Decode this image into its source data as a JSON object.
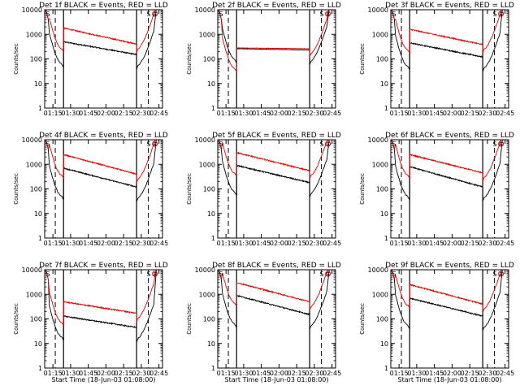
{
  "figure": {
    "ylabel": "Counts/sec",
    "xlabel": "Start Time (18-Jun-03 01:08:00)",
    "flag_s": "S",
    "flag_e": "E"
  },
  "chart_data": [
    {
      "type": "line",
      "title": "Det 1f BLACK = Events, RED = LLD",
      "xlabel": "Start Time (18-Jun-03 01:08:00)",
      "ylabel": "Counts/sec",
      "yscale": "log",
      "ylim": [
        1,
        10000
      ],
      "xlim": [
        0,
        100
      ],
      "x_ticks": [
        7,
        22,
        37,
        52,
        67,
        82,
        97
      ],
      "x_tick_labels": [
        "01:15",
        "01:30",
        "01:45",
        "02:00",
        "02:15",
        "02:30",
        "02:45"
      ],
      "y_ticks": [
        1,
        10,
        100,
        1000,
        10000
      ],
      "y_tick_labels": [
        "1",
        "10",
        "100",
        "1000",
        "10000"
      ],
      "show_xlabel": false,
      "saa_start": 16,
      "saa_end": 78,
      "dashed_lines": [
        9,
        88
      ],
      "series": [
        {
          "name": "Events",
          "color": "#000000",
          "start": 500,
          "end": 150
        },
        {
          "name": "LLD",
          "color": "#e00000",
          "start": 1800,
          "end": 400
        }
      ]
    },
    {
      "type": "line",
      "title": "Det 2f BLACK = Events, RED = LLD",
      "xlabel": "Start Time (18-Jun-03 01:08:00)",
      "ylabel": "Counts/sec",
      "yscale": "log",
      "ylim": [
        1,
        10000
      ],
      "xlim": [
        0,
        100
      ],
      "x_ticks": [
        7,
        22,
        37,
        52,
        67,
        82,
        97
      ],
      "x_tick_labels": [
        "01:15",
        "01:30",
        "01:45",
        "02:00",
        "02:15",
        "02:30",
        "02:45"
      ],
      "y_ticks": [
        1,
        10,
        100,
        1000,
        10000
      ],
      "y_tick_labels": [
        "1",
        "10",
        "100",
        "1000",
        "10000"
      ],
      "show_xlabel": false,
      "saa_start": 16,
      "saa_end": 78,
      "dashed_lines": [
        9,
        88
      ],
      "series": [
        {
          "name": "Events",
          "color": "#000000",
          "start": 260,
          "end": 230
        },
        {
          "name": "LLD",
          "color": "#e00000",
          "start": 280,
          "end": 260
        }
      ]
    },
    {
      "type": "line",
      "title": "Det 3f BLACK = Events, RED = LLD",
      "xlabel": "Start Time (18-Jun-03 01:08:00)",
      "ylabel": "Counts/sec",
      "yscale": "log",
      "ylim": [
        1,
        10000
      ],
      "xlim": [
        0,
        100
      ],
      "x_ticks": [
        7,
        22,
        37,
        52,
        67,
        82,
        97
      ],
      "x_tick_labels": [
        "01:15",
        "01:30",
        "01:45",
        "02:00",
        "02:15",
        "02:30",
        "02:45"
      ],
      "y_ticks": [
        1,
        10,
        100,
        1000,
        10000
      ],
      "y_tick_labels": [
        "1",
        "10",
        "100",
        "1000",
        "10000"
      ],
      "show_xlabel": false,
      "saa_start": 16,
      "saa_end": 78,
      "dashed_lines": [
        9,
        88
      ],
      "series": [
        {
          "name": "Events",
          "color": "#000000",
          "start": 450,
          "end": 120
        },
        {
          "name": "LLD",
          "color": "#e00000",
          "start": 1600,
          "end": 380
        }
      ]
    },
    {
      "type": "line",
      "title": "Det 4f BLACK = Events, RED = LLD",
      "xlabel": "Start Time (18-Jun-03 01:08:00)",
      "ylabel": "Counts/sec",
      "yscale": "log",
      "ylim": [
        1,
        10000
      ],
      "xlim": [
        0,
        100
      ],
      "x_ticks": [
        7,
        22,
        37,
        52,
        67,
        82,
        97
      ],
      "x_tick_labels": [
        "01:15",
        "01:30",
        "01:45",
        "02:00",
        "02:15",
        "02:30",
        "02:45"
      ],
      "y_ticks": [
        1,
        10,
        100,
        1000,
        10000
      ],
      "y_tick_labels": [
        "1",
        "10",
        "100",
        "1000",
        "10000"
      ],
      "show_xlabel": false,
      "saa_start": 16,
      "saa_end": 78,
      "dashed_lines": [
        9,
        88
      ],
      "series": [
        {
          "name": "Events",
          "color": "#000000",
          "start": 700,
          "end": 120
        },
        {
          "name": "LLD",
          "color": "#e00000",
          "start": 2500,
          "end": 400
        }
      ]
    },
    {
      "type": "line",
      "title": "Det 5f BLACK = Events, RED = LLD",
      "xlabel": "Start Time (18-Jun-03 01:08:00)",
      "ylabel": "Counts/sec",
      "yscale": "log",
      "ylim": [
        1,
        10000
      ],
      "xlim": [
        0,
        100
      ],
      "x_ticks": [
        7,
        22,
        37,
        52,
        67,
        82,
        97
      ],
      "x_tick_labels": [
        "01:15",
        "01:30",
        "01:45",
        "02:00",
        "02:15",
        "02:30",
        "02:45"
      ],
      "y_ticks": [
        1,
        10,
        100,
        1000,
        10000
      ],
      "y_tick_labels": [
        "1",
        "10",
        "100",
        "1000",
        "10000"
      ],
      "show_xlabel": false,
      "saa_start": 16,
      "saa_end": 78,
      "dashed_lines": [
        9,
        88
      ],
      "series": [
        {
          "name": "Events",
          "color": "#000000",
          "start": 900,
          "end": 180
        },
        {
          "name": "LLD",
          "color": "#e00000",
          "start": 3000,
          "end": 550
        }
      ]
    },
    {
      "type": "line",
      "title": "Det 6f BLACK = Events, RED = LLD",
      "xlabel": "Start Time (18-Jun-03 01:08:00)",
      "ylabel": "Counts/sec",
      "yscale": "log",
      "ylim": [
        1,
        10000
      ],
      "xlim": [
        0,
        100
      ],
      "x_ticks": [
        7,
        22,
        37,
        52,
        67,
        82,
        97
      ],
      "x_tick_labels": [
        "01:15",
        "01:30",
        "01:45",
        "02:00",
        "02:15",
        "02:30",
        "02:45"
      ],
      "y_ticks": [
        1,
        10,
        100,
        1000,
        10000
      ],
      "y_tick_labels": [
        "1",
        "10",
        "100",
        "1000",
        "10000"
      ],
      "show_xlabel": false,
      "saa_start": 16,
      "saa_end": 78,
      "dashed_lines": [
        9,
        88
      ],
      "series": [
        {
          "name": "Events",
          "color": "#000000",
          "start": 800,
          "end": 120
        },
        {
          "name": "LLD",
          "color": "#e00000",
          "start": 2500,
          "end": 450
        }
      ]
    },
    {
      "type": "line",
      "title": "Det 7f BLACK = Events, RED = LLD",
      "xlabel": "Start Time (18-Jun-03 01:08:00)",
      "ylabel": "Counts/sec",
      "yscale": "log",
      "ylim": [
        1,
        10000
      ],
      "xlim": [
        0,
        100
      ],
      "x_ticks": [
        7,
        22,
        37,
        52,
        67,
        82,
        97
      ],
      "x_tick_labels": [
        "01:15",
        "01:30",
        "01:45",
        "02:00",
        "02:15",
        "02:30",
        "02:45"
      ],
      "y_ticks": [
        1,
        10,
        100,
        1000,
        10000
      ],
      "y_tick_labels": [
        "1",
        "10",
        "100",
        "1000",
        "10000"
      ],
      "show_xlabel": true,
      "saa_start": 16,
      "saa_end": 78,
      "dashed_lines": [
        9,
        88
      ],
      "series": [
        {
          "name": "Events",
          "color": "#000000",
          "start": 130,
          "end": 45
        },
        {
          "name": "LLD",
          "color": "#e00000",
          "start": 500,
          "end": 170
        }
      ]
    },
    {
      "type": "line",
      "title": "Det 8f BLACK = Events, RED = LLD",
      "xlabel": "Start Time (18-Jun-03 01:08:00)",
      "ylabel": "Counts/sec",
      "yscale": "log",
      "ylim": [
        1,
        10000
      ],
      "xlim": [
        0,
        100
      ],
      "x_ticks": [
        7,
        22,
        37,
        52,
        67,
        82,
        97
      ],
      "x_tick_labels": [
        "01:15",
        "01:30",
        "01:45",
        "02:00",
        "02:15",
        "02:30",
        "02:45"
      ],
      "y_ticks": [
        1,
        10,
        100,
        1000,
        10000
      ],
      "y_tick_labels": [
        "1",
        "10",
        "100",
        "1000",
        "10000"
      ],
      "show_xlabel": true,
      "saa_start": 16,
      "saa_end": 78,
      "dashed_lines": [
        9,
        88
      ],
      "series": [
        {
          "name": "Events",
          "color": "#000000",
          "start": 900,
          "end": 150
        },
        {
          "name": "LLD",
          "color": "#e00000",
          "start": 3000,
          "end": 500
        }
      ]
    },
    {
      "type": "line",
      "title": "Det 9f BLACK = Events, RED = LLD",
      "xlabel": "Start Time (18-Jun-03 01:08:00)",
      "ylabel": "Counts/sec",
      "yscale": "log",
      "ylim": [
        1,
        10000
      ],
      "xlim": [
        0,
        100
      ],
      "x_ticks": [
        7,
        22,
        37,
        52,
        67,
        82,
        97
      ],
      "x_tick_labels": [
        "01:15",
        "01:30",
        "01:45",
        "02:00",
        "02:15",
        "02:30",
        "02:45"
      ],
      "y_ticks": [
        1,
        10,
        100,
        1000,
        10000
      ],
      "y_tick_labels": [
        "1",
        "10",
        "100",
        "1000",
        "10000"
      ],
      "show_xlabel": true,
      "saa_start": 16,
      "saa_end": 78,
      "dashed_lines": [
        9,
        88
      ],
      "series": [
        {
          "name": "Events",
          "color": "#000000",
          "start": 700,
          "end": 130
        },
        {
          "name": "LLD",
          "color": "#e00000",
          "start": 2500,
          "end": 400
        }
      ]
    }
  ]
}
